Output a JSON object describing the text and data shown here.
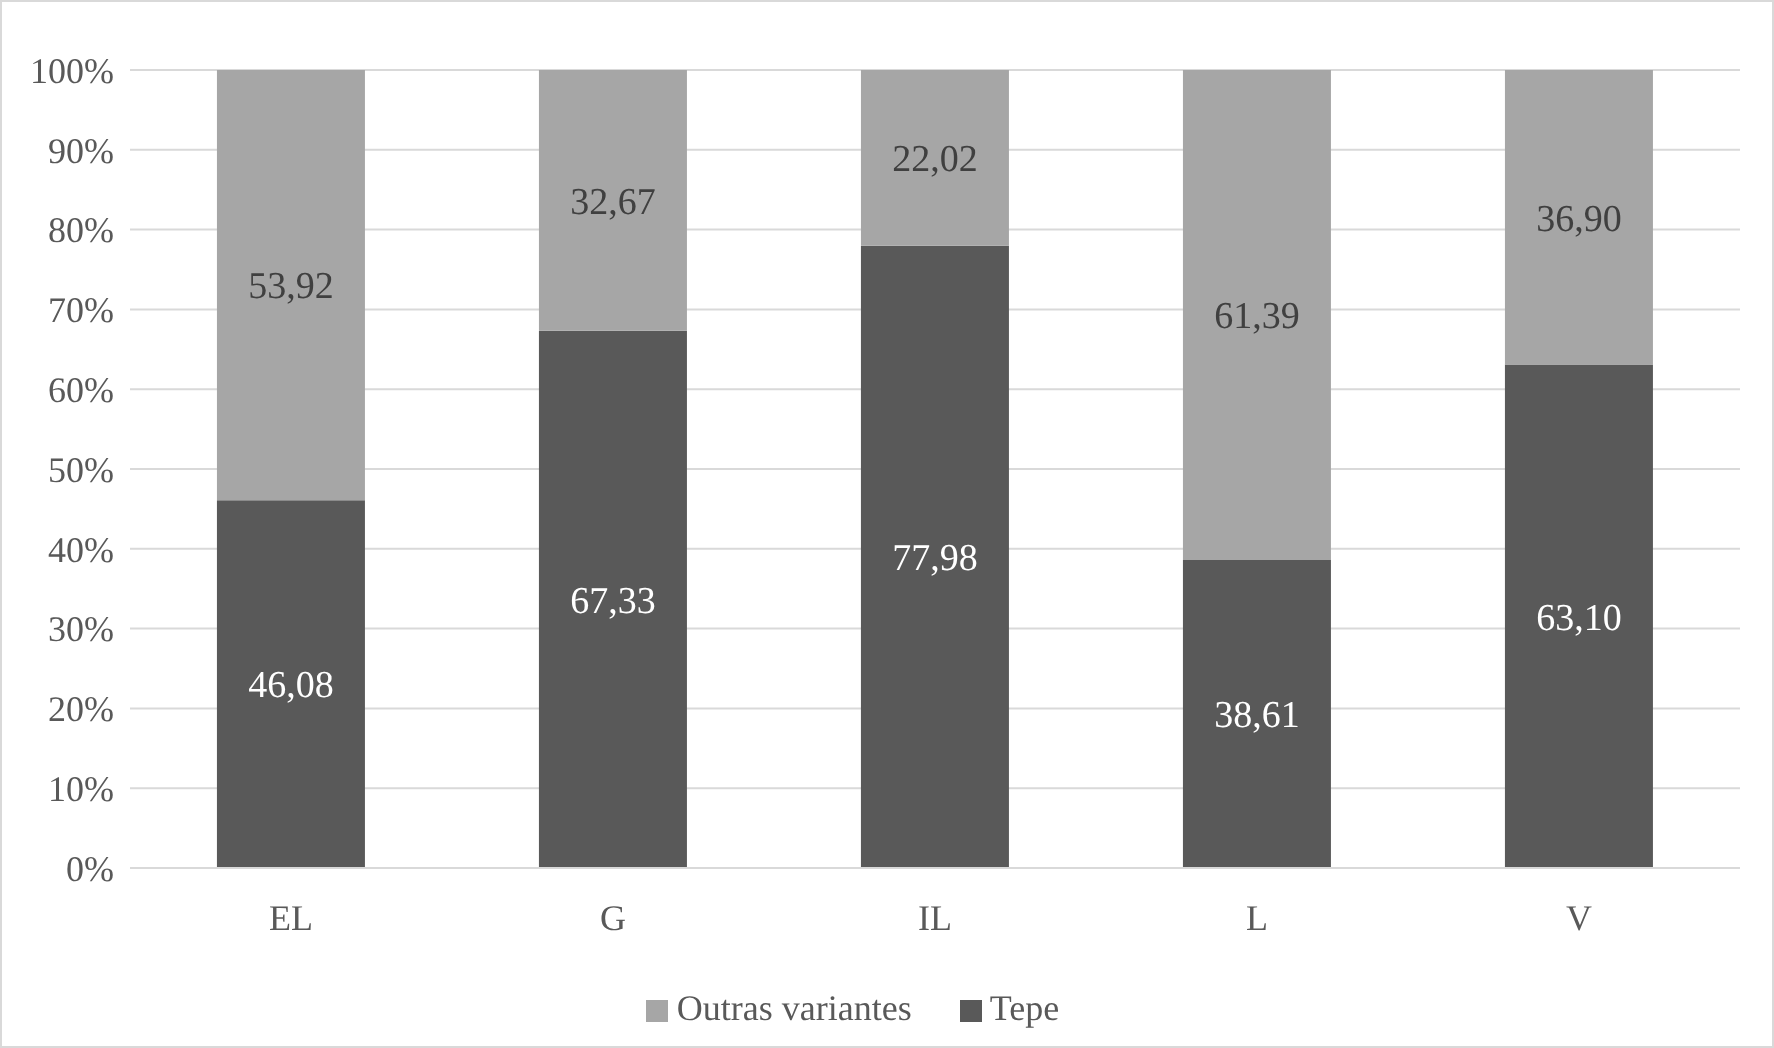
{
  "chart_data": {
    "type": "bar",
    "stacked": true,
    "categories": [
      "EL",
      "G",
      "IL",
      "L",
      "V"
    ],
    "series": [
      {
        "name": "Tepe",
        "color": "#595959",
        "values": [
          46.08,
          67.33,
          77.98,
          38.61,
          63.1
        ],
        "value_labels": [
          "46,08",
          "67,33",
          "77,98",
          "38,61",
          "63,10"
        ]
      },
      {
        "name": "Outras variantes",
        "color": "#a6a6a6",
        "values": [
          53.92,
          32.67,
          22.02,
          61.39,
          36.9
        ],
        "value_labels": [
          "53,92",
          "32,67",
          "22,02",
          "61,39",
          "36,90"
        ]
      }
    ],
    "ylim": [
      0,
      100
    ],
    "yticks": [
      {
        "value": 0,
        "label": "0%"
      },
      {
        "value": 10,
        "label": "10%"
      },
      {
        "value": 20,
        "label": "20%"
      },
      {
        "value": 30,
        "label": "30%"
      },
      {
        "value": 40,
        "label": "40%"
      },
      {
        "value": 50,
        "label": "50%"
      },
      {
        "value": 60,
        "label": "60%"
      },
      {
        "value": 70,
        "label": "70%"
      },
      {
        "value": 80,
        "label": "80%"
      },
      {
        "value": 90,
        "label": "90%"
      },
      {
        "value": 100,
        "label": "100%"
      }
    ],
    "grid": "y",
    "legend": "bottom"
  }
}
